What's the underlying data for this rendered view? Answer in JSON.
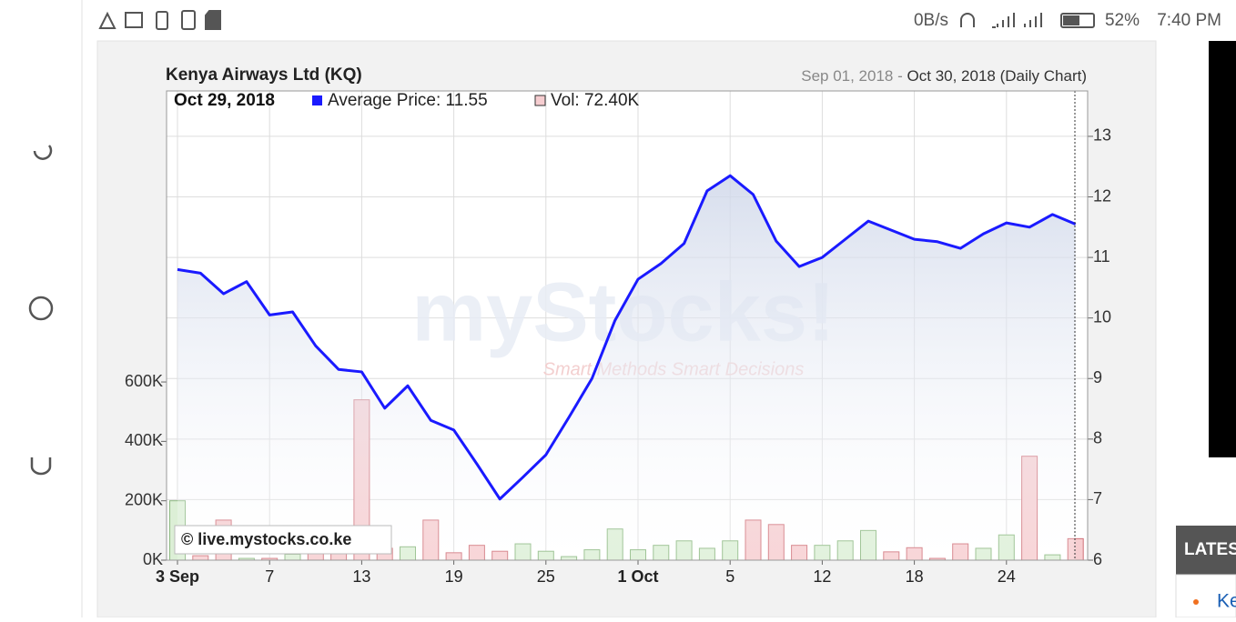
{
  "status_bar": {
    "speed": "0B/s",
    "battery": "52%",
    "time": "7:40 PM"
  },
  "chart_data": {
    "type": "combo",
    "title": "Kenya Airways Ltd (KQ)",
    "range_from": "Sep 01, 2018",
    "range_sep": "-",
    "range_to": "Oct 30, 2018 (Daily Chart)",
    "selected_date": "Oct 29, 2018",
    "watermark": "myStocks!",
    "watermark_tagline": "Smart Methods Smart Decisions",
    "credit": "© live.mystocks.co.ke",
    "categories": [
      "3 Sep",
      null,
      null,
      null,
      "7",
      null,
      null,
      null,
      "13",
      null,
      null,
      null,
      "19",
      null,
      null,
      null,
      "25",
      null,
      null,
      null,
      "1 Oct",
      null,
      null,
      null,
      "5",
      null,
      null,
      null,
      "12",
      null,
      null,
      null,
      "18",
      null,
      null,
      null,
      "24",
      null,
      null,
      null
    ],
    "series": [
      {
        "name": "Average Price: 11.55",
        "type": "line",
        "axis": "y2",
        "color": "#1a1aff",
        "values": [
          10.8,
          10.74,
          10.4,
          10.6,
          10.05,
          10.1,
          9.54,
          9.15,
          9.11,
          8.51,
          8.88,
          8.31,
          8.15,
          7.59,
          7.01,
          7.37,
          7.74,
          8.36,
          9.0,
          9.96,
          10.64,
          10.9,
          11.23,
          12.1,
          12.35,
          12.04,
          11.27,
          10.85,
          11.0,
          11.3,
          11.6,
          11.45,
          11.3,
          11.26,
          11.15,
          11.39,
          11.57,
          11.5,
          11.71,
          11.55
        ]
      },
      {
        "name": "Vol: 72.40K",
        "type": "bar",
        "color": "#f4b6b6",
        "values": [
          200000,
          15000,
          135000,
          6000,
          6000,
          20000,
          30000,
          50000,
          540000,
          40000,
          45000,
          135000,
          25000,
          50000,
          30000,
          55000,
          30000,
          12000,
          35000,
          105000,
          35000,
          50000,
          65000,
          40000,
          65000,
          135000,
          120000,
          50000,
          50000,
          65000,
          100000,
          28000,
          42000,
          6000,
          55000,
          40000,
          85000,
          350000,
          18000,
          72400
        ],
        "colors": [
          "g",
          "r",
          "r",
          "g",
          "r",
          "g",
          "r",
          "r",
          "r",
          "r",
          "g",
          "r",
          "r",
          "r",
          "r",
          "g",
          "g",
          "g",
          "g",
          "g",
          "g",
          "g",
          "g",
          "g",
          "g",
          "r",
          "r",
          "r",
          "g",
          "g",
          "g",
          "r",
          "r",
          "r",
          "r",
          "g",
          "g",
          "r",
          "g",
          "r"
        ],
        "palette": {
          "g": "#dcefd6",
          "r": "#f6cdd0"
        }
      }
    ],
    "ylim": [
      0,
      1580000
    ],
    "yticks": [
      {
        "value": 0,
        "label": "0K"
      },
      {
        "value": 200000,
        "label": "200K"
      },
      {
        "value": 400000,
        "label": "400K"
      },
      {
        "value": 600000,
        "label": "600K"
      }
    ],
    "y2lim": [
      6,
      13.75
    ],
    "y2ticks": [
      6,
      7,
      8,
      9,
      10,
      11,
      12,
      13
    ],
    "grid": true
  },
  "sidebar": {
    "heading": "LATES",
    "item": "Ke"
  }
}
